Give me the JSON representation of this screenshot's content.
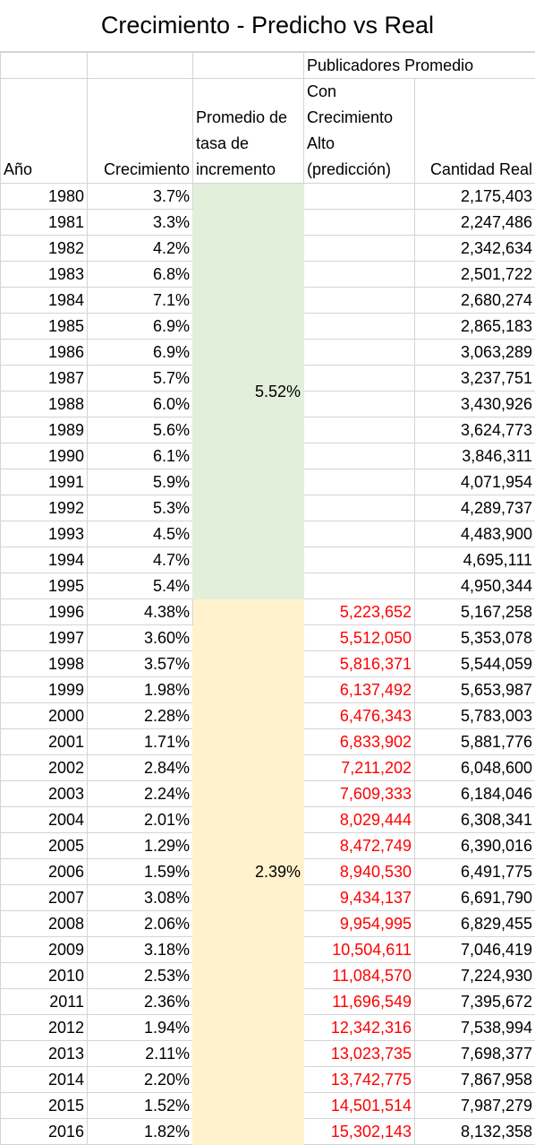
{
  "title": "Crecimiento - Predicho vs Real",
  "header": {
    "group_label": "Publicadores Promedio",
    "col_year": "Año",
    "col_growth": "Crecimiento",
    "col_avg": "Promedio de tasa de incremento",
    "col_pred": "Con Crecimiento Alto (predicción)",
    "col_real": "Cantidad Real"
  },
  "averages": {
    "first": "5.52%",
    "second": "2.39%"
  },
  "rows": [
    {
      "year": "1980",
      "growth": "3.7%",
      "pred": "",
      "real": "2,175,403"
    },
    {
      "year": "1981",
      "growth": "3.3%",
      "pred": "",
      "real": "2,247,486"
    },
    {
      "year": "1982",
      "growth": "4.2%",
      "pred": "",
      "real": "2,342,634"
    },
    {
      "year": "1983",
      "growth": "6.8%",
      "pred": "",
      "real": "2,501,722"
    },
    {
      "year": "1984",
      "growth": "7.1%",
      "pred": "",
      "real": "2,680,274"
    },
    {
      "year": "1985",
      "growth": "6.9%",
      "pred": "",
      "real": "2,865,183"
    },
    {
      "year": "1986",
      "growth": "6.9%",
      "pred": "",
      "real": "3,063,289"
    },
    {
      "year": "1987",
      "growth": "5.7%",
      "pred": "",
      "real": "3,237,751"
    },
    {
      "year": "1988",
      "growth": "6.0%",
      "pred": "",
      "real": "3,430,926"
    },
    {
      "year": "1989",
      "growth": "5.6%",
      "pred": "",
      "real": "3,624,773"
    },
    {
      "year": "1990",
      "growth": "6.1%",
      "pred": "",
      "real": "3,846,311"
    },
    {
      "year": "1991",
      "growth": "5.9%",
      "pred": "",
      "real": "4,071,954"
    },
    {
      "year": "1992",
      "growth": "5.3%",
      "pred": "",
      "real": "4,289,737"
    },
    {
      "year": "1993",
      "growth": "4.5%",
      "pred": "",
      "real": "4,483,900"
    },
    {
      "year": "1994",
      "growth": "4.7%",
      "pred": "",
      "real": "4,695,111"
    },
    {
      "year": "1995",
      "growth": "5.4%",
      "pred": "",
      "real": "4,950,344"
    },
    {
      "year": "1996",
      "growth": "4.38%",
      "pred": "5,223,652",
      "real": "5,167,258"
    },
    {
      "year": "1997",
      "growth": "3.60%",
      "pred": "5,512,050",
      "real": "5,353,078"
    },
    {
      "year": "1998",
      "growth": "3.57%",
      "pred": "5,816,371",
      "real": "5,544,059"
    },
    {
      "year": "1999",
      "growth": "1.98%",
      "pred": "6,137,492",
      "real": "5,653,987"
    },
    {
      "year": "2000",
      "growth": "2.28%",
      "pred": "6,476,343",
      "real": "5,783,003"
    },
    {
      "year": "2001",
      "growth": "1.71%",
      "pred": "6,833,902",
      "real": "5,881,776"
    },
    {
      "year": "2002",
      "growth": "2.84%",
      "pred": "7,211,202",
      "real": "6,048,600"
    },
    {
      "year": "2003",
      "growth": "2.24%",
      "pred": "7,609,333",
      "real": "6,184,046"
    },
    {
      "year": "2004",
      "growth": "2.01%",
      "pred": "8,029,444",
      "real": "6,308,341"
    },
    {
      "year": "2005",
      "growth": "1.29%",
      "pred": "8,472,749",
      "real": "6,390,016"
    },
    {
      "year": "2006",
      "growth": "1.59%",
      "pred": "8,940,530",
      "real": "6,491,775"
    },
    {
      "year": "2007",
      "growth": "3.08%",
      "pred": "9,434,137",
      "real": "6,691,790"
    },
    {
      "year": "2008",
      "growth": "2.06%",
      "pred": "9,954,995",
      "real": "6,829,455"
    },
    {
      "year": "2009",
      "growth": "3.18%",
      "pred": "10,504,611",
      "real": "7,046,419"
    },
    {
      "year": "2010",
      "growth": "2.53%",
      "pred": "11,084,570",
      "real": "7,224,930"
    },
    {
      "year": "2011",
      "growth": "2.36%",
      "pred": "11,696,549",
      "real": "7,395,672"
    },
    {
      "year": "2012",
      "growth": "1.94%",
      "pred": "12,342,316",
      "real": "7,538,994"
    },
    {
      "year": "2013",
      "growth": "2.11%",
      "pred": "13,023,735",
      "real": "7,698,377"
    },
    {
      "year": "2014",
      "growth": "2.20%",
      "pred": "13,742,775",
      "real": "7,867,958"
    },
    {
      "year": "2015",
      "growth": "1.52%",
      "pred": "14,501,514",
      "real": "7,987,279"
    },
    {
      "year": "2016",
      "growth": "1.82%",
      "pred": "15,302,143",
      "real": "8,132,358"
    }
  ]
}
